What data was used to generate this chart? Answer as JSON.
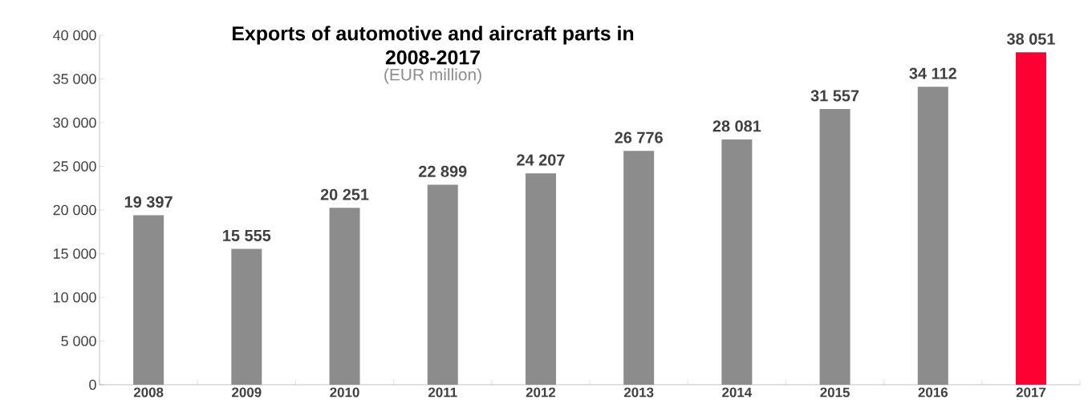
{
  "chart_data": {
    "type": "bar",
    "title": "Exports of automotive and aircraft parts in 2008-2017",
    "subtitle": "(EUR million)",
    "categories": [
      "2008",
      "2009",
      "2010",
      "2011",
      "2012",
      "2013",
      "2014",
      "2015",
      "2016",
      "2017"
    ],
    "values": [
      19397,
      15555,
      20251,
      22899,
      24207,
      26776,
      28081,
      31557,
      34112,
      38051
    ],
    "value_labels": [
      "19 397",
      "15 555",
      "20 251",
      "22 899",
      "24 207",
      "26 776",
      "28 081",
      "31 557",
      "34 112",
      "38 051"
    ],
    "colors": [
      "#8c8c8c",
      "#8c8c8c",
      "#8c8c8c",
      "#8c8c8c",
      "#8c8c8c",
      "#8c8c8c",
      "#8c8c8c",
      "#8c8c8c",
      "#8c8c8c",
      "#ff0033"
    ],
    "ylim": [
      0,
      40000
    ],
    "yticks": [
      {
        "value": 0,
        "label": "0"
      },
      {
        "value": 5000,
        "label": "5 000"
      },
      {
        "value": 10000,
        "label": "10 000"
      },
      {
        "value": 15000,
        "label": "15 000"
      },
      {
        "value": 20000,
        "label": "20 000"
      },
      {
        "value": 25000,
        "label": "25 000"
      },
      {
        "value": 30000,
        "label": "30 000"
      },
      {
        "value": 35000,
        "label": "35 000"
      },
      {
        "value": 40000,
        "label": "40 000"
      }
    ],
    "grid": false
  }
}
